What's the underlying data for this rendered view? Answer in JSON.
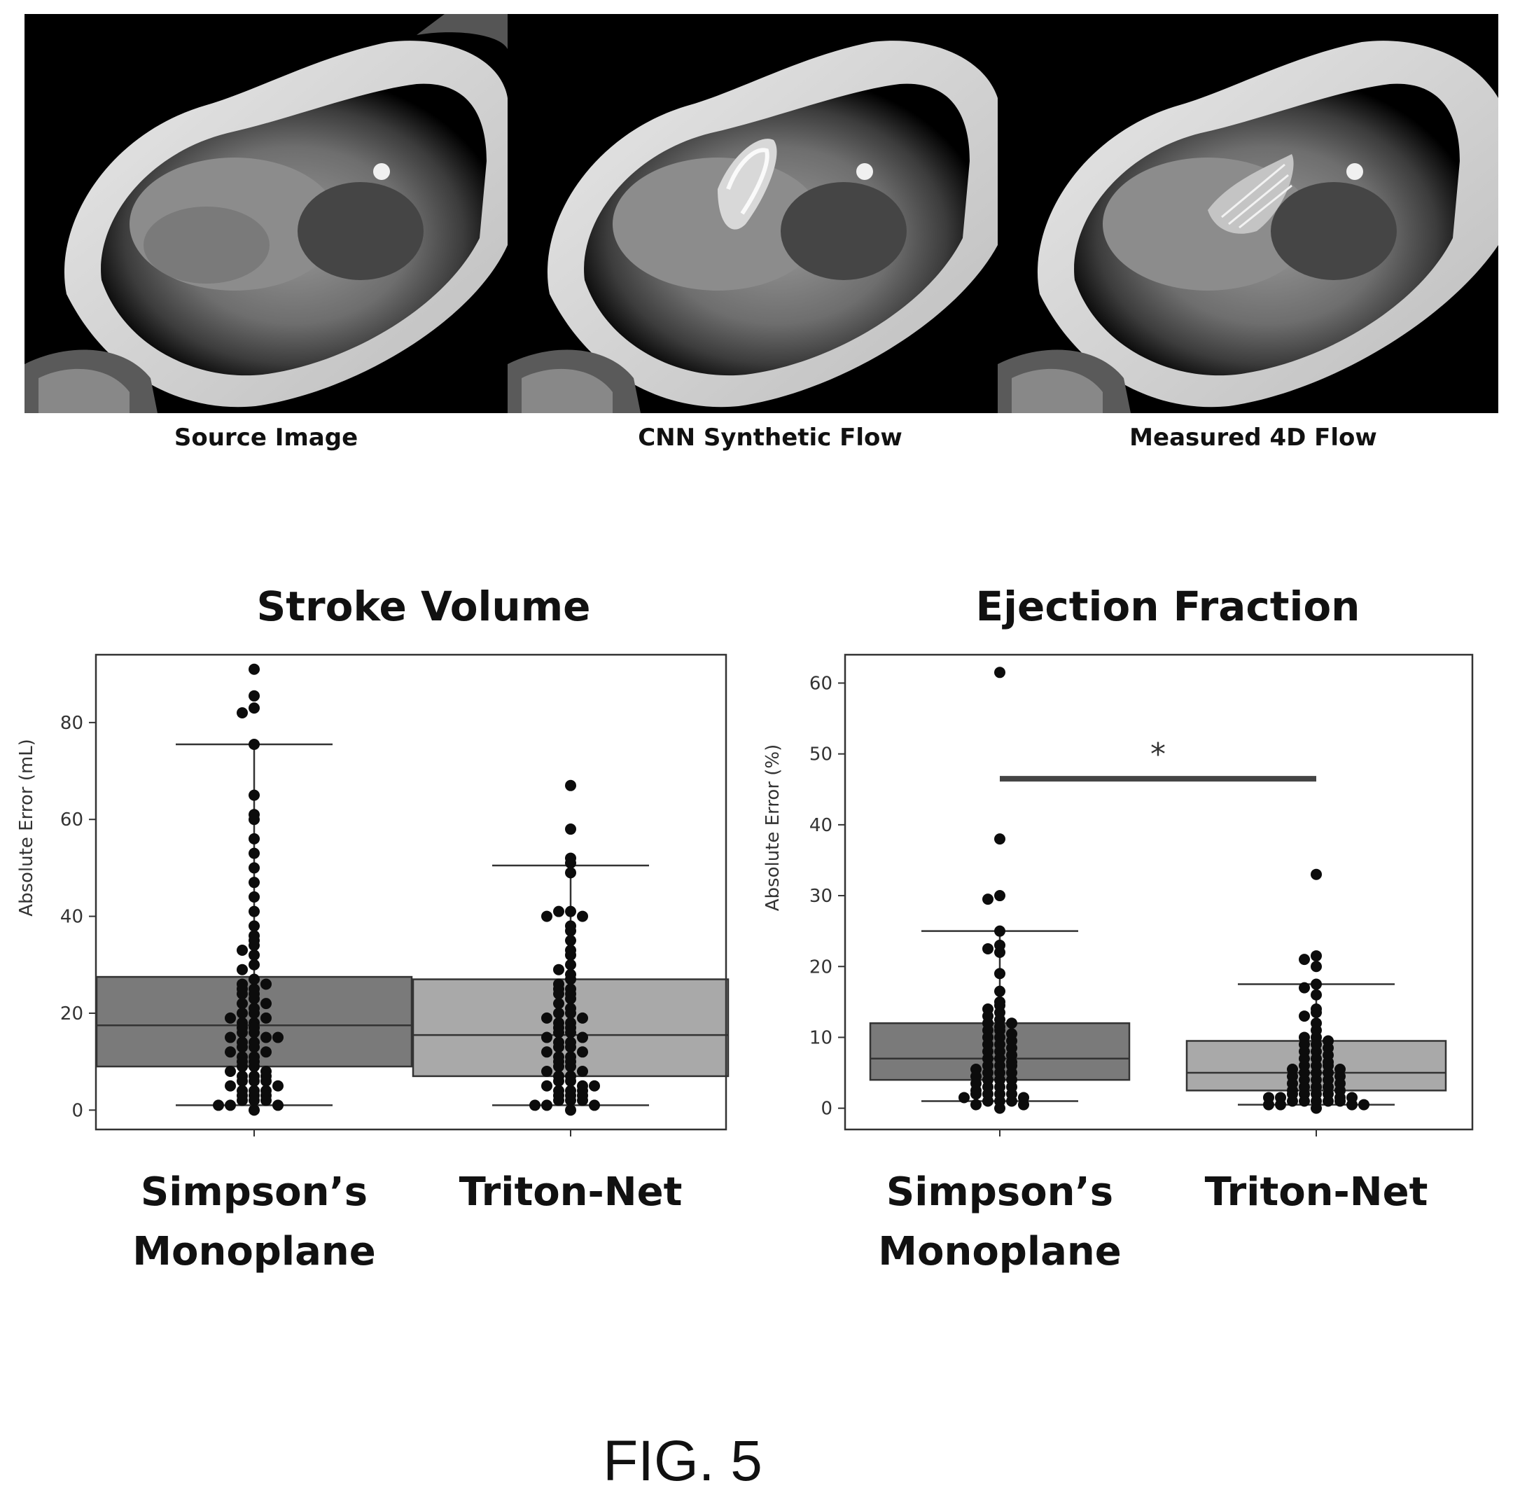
{
  "figure_label": "FIG. 5",
  "image_panels": [
    {
      "caption": "Source Image",
      "content": "cardiac MRI four-chamber view"
    },
    {
      "caption": "CNN Synthetic Flow",
      "content": "cardiac MRI with synthetic flow overlay"
    },
    {
      "caption": "Measured 4D Flow",
      "content": "cardiac MRI with measured 4D flow overlay"
    }
  ],
  "chart_data": [
    {
      "type": "box",
      "title": "Stroke Volume",
      "ylabel": "Absolute Error (mL)",
      "xlabel": "",
      "categories": [
        "Simpson’s Monoplane",
        "Triton-Net"
      ],
      "category_lines": [
        [
          "Simpson’s",
          "Monoplane"
        ],
        [
          "Triton-Net"
        ]
      ],
      "ylim": [
        -4,
        94
      ],
      "yticks": [
        0,
        20,
        40,
        60,
        80
      ],
      "grid": false,
      "boxes": [
        {
          "name": "Simpson’s Monoplane",
          "q1": 9,
          "median": 17.5,
          "q3": 27.5,
          "whisker_low": 1,
          "whisker_high": 75.5,
          "color": "#7a7a7a",
          "points": [
            91,
            85.5,
            83,
            82,
            75.5,
            65,
            61,
            60,
            56,
            53,
            50,
            47,
            44,
            41,
            38,
            36,
            35,
            34,
            33,
            32,
            30,
            29,
            27,
            26,
            26,
            25,
            25,
            24,
            24,
            23,
            22,
            22,
            21,
            20,
            20,
            19,
            19,
            18,
            18,
            17,
            17,
            16,
            16,
            15,
            15,
            15,
            14,
            14,
            13,
            13,
            12,
            12,
            11,
            11,
            10,
            10,
            9,
            9,
            8,
            8,
            7,
            7,
            7,
            6,
            6,
            6,
            5,
            5,
            4,
            4,
            4,
            3,
            3,
            3,
            2,
            2,
            2,
            1,
            1,
            1,
            0
          ]
        },
        {
          "name": "Triton-Net",
          "q1": 7,
          "median": 15.5,
          "q3": 27,
          "whisker_low": 1,
          "whisker_high": 50.5,
          "color": "#a9a9a9",
          "points": [
            67,
            58,
            52,
            51,
            49,
            41,
            41,
            40,
            40,
            38,
            37,
            35,
            33,
            32,
            30,
            29,
            28,
            27,
            26,
            25,
            25,
            24,
            24,
            23,
            22,
            21,
            20,
            20,
            19,
            19,
            18,
            18,
            17,
            17,
            16,
            16,
            15,
            15,
            14,
            14,
            13,
            13,
            12,
            12,
            11,
            11,
            10,
            10,
            9,
            9,
            8,
            8,
            7,
            7,
            6,
            6,
            5,
            5,
            5,
            4,
            4,
            4,
            3,
            3,
            3,
            2,
            2,
            2,
            1,
            1,
            1,
            0
          ]
        }
      ]
    },
    {
      "type": "box",
      "title": "Ejection Fraction",
      "ylabel": "Absolute Error (%)",
      "xlabel": "",
      "categories": [
        "Simpson’s Monoplane",
        "Triton-Net"
      ],
      "category_lines": [
        [
          "Simpson’s",
          "Monoplane"
        ],
        [
          "Triton-Net"
        ]
      ],
      "ylim": [
        -3,
        64
      ],
      "yticks": [
        0,
        10,
        20,
        30,
        40,
        50,
        60
      ],
      "grid": false,
      "significance": {
        "label": "*",
        "y": 46.5
      },
      "boxes": [
        {
          "name": "Simpson’s Monoplane",
          "q1": 4,
          "median": 7,
          "q3": 12,
          "whisker_low": 1,
          "whisker_high": 25,
          "color": "#7a7a7a",
          "points": [
            61.5,
            38,
            30,
            29.5,
            25,
            23,
            22.5,
            22,
            19,
            16.5,
            15,
            14.5,
            14,
            13.5,
            13,
            12.5,
            12,
            12,
            11.5,
            11,
            11,
            10.5,
            10,
            10,
            9.5,
            9,
            9,
            8.5,
            8,
            8,
            7.5,
            7,
            7,
            6.5,
            6,
            6,
            6,
            5.5,
            5,
            5,
            5,
            4.5,
            4,
            4,
            4,
            3.5,
            3,
            3,
            3,
            2.5,
            2,
            2,
            2,
            2,
            1.5,
            1.5,
            1,
            1,
            1,
            0.5,
            0.5,
            0
          ]
        },
        {
          "name": "Triton-Net",
          "q1": 2.5,
          "median": 5,
          "q3": 9.5,
          "whisker_low": 0.5,
          "whisker_high": 17.5,
          "color": "#a9a9a9",
          "points": [
            33,
            21.5,
            21,
            20,
            17.5,
            17,
            16,
            14,
            13.5,
            13,
            12,
            11,
            10,
            10,
            9.5,
            9,
            9,
            8.5,
            8,
            8,
            7.5,
            7,
            7,
            6.5,
            6,
            6,
            6,
            5.5,
            5.5,
            5,
            5,
            5,
            4.5,
            4.5,
            4,
            4,
            4,
            3.5,
            3.5,
            3,
            3,
            3,
            2.5,
            2.5,
            2,
            2,
            2,
            2,
            1.5,
            1.5,
            1.5,
            1.5,
            1,
            1,
            1,
            1,
            1,
            0.5,
            0.5,
            0.5,
            0.5,
            0
          ]
        }
      ]
    }
  ]
}
